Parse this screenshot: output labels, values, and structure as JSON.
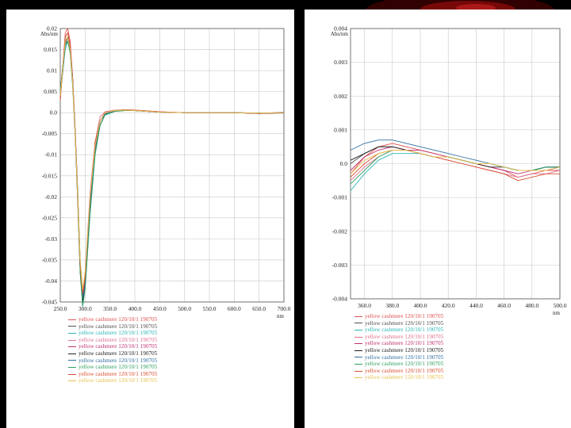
{
  "chart_data": [
    {
      "type": "line",
      "ylabel": "Abs/nm",
      "xlabel": "nm",
      "xlim": [
        250,
        700
      ],
      "ylim": [
        -0.045,
        0.02
      ],
      "x_ticks": [
        "250.0",
        "300.0",
        "350.0",
        "400.0",
        "450.0",
        "500.0",
        "550.0",
        "600.0",
        "650.0",
        "700.0"
      ],
      "y_ticks": [
        "0.02",
        "0.015",
        "0.01",
        "0.005",
        "0.0",
        "-0.005",
        "-0.01",
        "-0.015",
        "-0.02",
        "-0.025",
        "-0.03",
        "-0.035",
        "-0.04",
        "-0.045"
      ],
      "y_tick_values": [
        0.02,
        0.015,
        0.01,
        0.005,
        0.0,
        -0.005,
        -0.01,
        -0.015,
        -0.02,
        -0.025,
        -0.03,
        -0.035,
        -0.04,
        -0.045
      ],
      "grid": true,
      "series": [
        {
          "name": "yellow cashmere 120/10/1 190705",
          "color": "#e05050",
          "x": [
            250,
            260,
            265,
            270,
            275,
            280,
            285,
            290,
            295,
            300,
            310,
            320,
            330,
            340,
            360,
            380,
            400,
            450,
            500,
            550,
            600,
            650,
            700
          ],
          "y": [
            0.003,
            0.019,
            0.02,
            0.017,
            0.008,
            -0.005,
            -0.02,
            -0.037,
            -0.044,
            -0.039,
            -0.02,
            -0.008,
            -0.002,
            0.0,
            0.0005,
            0.0007,
            0.0006,
            0.0002,
            0.0,
            0.0,
            0.0,
            -0.0002,
            0.0
          ]
        },
        {
          "name": "yellow cashmere 120/10/1 190705",
          "color": "#505050",
          "x": [
            250,
            260,
            265,
            270,
            275,
            280,
            285,
            290,
            295,
            300,
            310,
            320,
            330,
            340,
            360,
            380,
            400,
            450,
            500,
            550,
            600,
            650,
            700
          ],
          "y": [
            0.004,
            0.016,
            0.018,
            0.016,
            0.008,
            -0.004,
            -0.018,
            -0.035,
            -0.043,
            -0.04,
            -0.022,
            -0.009,
            -0.003,
            -0.0005,
            0.0004,
            0.0006,
            0.0005,
            0.0001,
            0.0,
            0.0,
            0.0,
            -0.0002,
            -0.0001
          ]
        },
        {
          "name": "yellow cashmere 120/10/1 190705",
          "color": "#2ab5b5",
          "x": [
            250,
            260,
            265,
            270,
            275,
            280,
            285,
            290,
            295,
            300,
            310,
            320,
            330,
            340,
            360,
            380,
            400,
            450,
            500,
            550,
            600,
            650,
            700
          ],
          "y": [
            0.004,
            0.015,
            0.017,
            0.015,
            0.007,
            -0.005,
            -0.019,
            -0.037,
            -0.046,
            -0.042,
            -0.024,
            -0.01,
            -0.003,
            -0.0006,
            0.0003,
            0.0005,
            0.0005,
            0.0001,
            0.0,
            0.0,
            0.0,
            -0.0001,
            0.0
          ]
        },
        {
          "name": "yellow cashmere 120/10/1 190705",
          "color": "#e07090",
          "x": [
            250,
            260,
            265,
            270,
            275,
            280,
            285,
            290,
            295,
            300,
            310,
            320,
            330,
            340,
            360,
            380,
            400,
            450,
            500,
            550,
            600,
            650,
            700
          ],
          "y": [
            0.003,
            0.018,
            0.019,
            0.016,
            0.007,
            -0.005,
            -0.02,
            -0.036,
            -0.043,
            -0.038,
            -0.019,
            -0.007,
            -0.001,
            0.0002,
            0.0006,
            0.0007,
            0.0006,
            0.0002,
            0.0,
            0.0,
            0.0,
            -0.0002,
            0.0001
          ]
        },
        {
          "name": "yellow cashmere 120/10/1 190705",
          "color": "#c03070",
          "x": [
            250,
            260,
            265,
            270,
            275,
            280,
            285,
            290,
            295,
            300,
            310,
            320,
            330,
            340,
            360,
            380,
            400,
            450,
            500,
            550,
            600,
            650,
            700
          ],
          "y": [
            0.004,
            0.017,
            0.018,
            0.016,
            0.008,
            -0.004,
            -0.019,
            -0.036,
            -0.044,
            -0.04,
            -0.021,
            -0.008,
            -0.002,
            0.0,
            0.0005,
            0.0006,
            0.0005,
            0.0001,
            0.0,
            0.0,
            0.0,
            -0.0001,
            0.0
          ]
        },
        {
          "name": "yellow cashmere 120/10/1 190705",
          "color": "#202020",
          "x": [
            250,
            260,
            265,
            270,
            275,
            280,
            285,
            290,
            295,
            300,
            310,
            320,
            330,
            340,
            360,
            380,
            400,
            450,
            500,
            550,
            600,
            650,
            700
          ],
          "y": [
            0.005,
            0.017,
            0.018,
            0.015,
            0.007,
            -0.005,
            -0.02,
            -0.038,
            -0.045,
            -0.041,
            -0.023,
            -0.009,
            -0.003,
            -0.0004,
            0.0004,
            0.0006,
            0.0005,
            0.0001,
            0.0,
            0.0,
            0.0,
            -0.0002,
            0.0
          ]
        },
        {
          "name": "yellow cashmere 120/10/1 190705",
          "color": "#3070a0",
          "x": [
            250,
            260,
            265,
            270,
            275,
            280,
            285,
            290,
            295,
            300,
            310,
            320,
            330,
            340,
            360,
            380,
            400,
            450,
            500,
            550,
            600,
            650,
            700
          ],
          "y": [
            0.004,
            0.016,
            0.017,
            0.015,
            0.007,
            -0.005,
            -0.019,
            -0.036,
            -0.044,
            -0.041,
            -0.022,
            -0.009,
            -0.002,
            -0.0003,
            0.0004,
            0.0006,
            0.0005,
            0.0001,
            0.0,
            0.0,
            0.0,
            -0.0001,
            0.0
          ]
        },
        {
          "name": "yellow cashmere 120/10/1 190705",
          "color": "#30a060",
          "x": [
            250,
            260,
            265,
            270,
            275,
            280,
            285,
            290,
            295,
            300,
            310,
            320,
            330,
            340,
            360,
            380,
            400,
            450,
            500,
            550,
            600,
            650,
            700
          ],
          "y": [
            0.005,
            0.016,
            0.017,
            0.014,
            0.006,
            -0.006,
            -0.021,
            -0.038,
            -0.046,
            -0.042,
            -0.024,
            -0.01,
            -0.003,
            -0.0005,
            0.0003,
            0.0005,
            0.0005,
            0.0001,
            0.0,
            0.0,
            0.0,
            -0.0001,
            0.0
          ]
        },
        {
          "name": "yellow cashmere 120/10/1 190705",
          "color": "#d85030",
          "x": [
            250,
            260,
            265,
            270,
            275,
            280,
            285,
            290,
            295,
            300,
            310,
            320,
            330,
            340,
            360,
            380,
            400,
            450,
            500,
            550,
            600,
            650,
            700
          ],
          "y": [
            0.003,
            0.018,
            0.019,
            0.016,
            0.007,
            -0.005,
            -0.02,
            -0.036,
            -0.043,
            -0.039,
            -0.02,
            -0.007,
            -0.002,
            0.0001,
            0.0005,
            0.0007,
            0.0006,
            0.0002,
            0.0,
            0.0,
            0.0,
            -0.0002,
            0.0
          ]
        },
        {
          "name": "yellow cashmere 120/10/1 190705",
          "color": "#e8c050",
          "x": [
            250,
            260,
            265,
            270,
            275,
            280,
            285,
            290,
            295,
            300,
            310,
            320,
            330,
            340,
            360,
            380,
            400,
            450,
            500,
            550,
            600,
            650,
            700
          ],
          "y": [
            0.004,
            0.017,
            0.018,
            0.015,
            0.007,
            -0.005,
            -0.019,
            -0.035,
            -0.042,
            -0.038,
            -0.02,
            -0.008,
            -0.002,
            0.0,
            0.0005,
            0.0006,
            0.0005,
            0.0001,
            0.0,
            0.0,
            0.0,
            -0.0001,
            0.0
          ]
        }
      ]
    },
    {
      "type": "line",
      "ylabel": "Abs/nm",
      "xlabel": "nm",
      "xlim": [
        350,
        500
      ],
      "ylim": [
        -0.004,
        0.004
      ],
      "x_ticks": [
        "360.0",
        "380.0",
        "400.0",
        "420.0",
        "440.0",
        "460.0",
        "480.0",
        "500.0"
      ],
      "x_tick_values": [
        360,
        380,
        400,
        420,
        440,
        460,
        480,
        500
      ],
      "y_ticks": [
        "0.004",
        "0.003",
        "0.002",
        "0.001",
        "0.0",
        "-0.001",
        "-0.002",
        "-0.003",
        "-0.004"
      ],
      "y_tick_values": [
        0.004,
        0.003,
        0.002,
        0.001,
        0.0,
        -0.001,
        -0.002,
        -0.003,
        -0.004
      ],
      "grid": true,
      "series": [
        {
          "name": "yellow cashmere 120/10/1 190705",
          "color": "#e05050",
          "x": [
            350,
            360,
            370,
            380,
            390,
            400,
            410,
            420,
            430,
            440,
            450,
            460,
            470,
            480,
            490,
            500
          ],
          "y": [
            -0.0003,
            0.0002,
            0.0005,
            0.0006,
            0.0005,
            0.0004,
            0.0003,
            0.0002,
            0.0001,
            0.0,
            -0.0001,
            -0.0002,
            -0.0004,
            -0.0003,
            -0.0002,
            -0.0002
          ]
        },
        {
          "name": "yellow cashmere 120/10/1 190705",
          "color": "#505050",
          "x": [
            350,
            360,
            370,
            380,
            390,
            400,
            410,
            420,
            430,
            440,
            450,
            460,
            470,
            480,
            490,
            500
          ],
          "y": [
            0.0,
            0.0003,
            0.0005,
            0.0005,
            0.0004,
            0.0003,
            0.0002,
            0.0002,
            0.0001,
            0.0,
            0.0,
            -0.0001,
            -0.0002,
            -0.0002,
            -0.0001,
            -0.0001
          ]
        },
        {
          "name": "yellow cashmere 120/10/1 190705",
          "color": "#2ab5b5",
          "x": [
            350,
            360,
            370,
            380,
            390,
            400,
            410,
            420,
            430,
            440,
            450,
            460,
            470,
            480,
            490,
            500
          ],
          "y": [
            -0.0008,
            -0.0003,
            0.0001,
            0.0003,
            0.0003,
            0.0003,
            0.0002,
            0.0002,
            0.0001,
            0.0,
            0.0,
            -0.0001,
            -0.0002,
            -0.0002,
            -0.0001,
            -0.0001
          ]
        },
        {
          "name": "yellow cashmere 120/10/1 190705",
          "color": "#e07090",
          "x": [
            350,
            360,
            370,
            380,
            390,
            400,
            410,
            420,
            430,
            440,
            450,
            460,
            470,
            480,
            490,
            500
          ],
          "y": [
            -0.0005,
            -0.0001,
            0.0002,
            0.0004,
            0.0004,
            0.0003,
            0.0002,
            0.0001,
            0.0,
            -0.0001,
            -0.0002,
            -0.0003,
            -0.0004,
            -0.0003,
            -0.0003,
            -0.0002
          ]
        },
        {
          "name": "yellow cashmere 120/10/1 190705",
          "color": "#c03070",
          "x": [
            350,
            360,
            370,
            380,
            390,
            400,
            410,
            420,
            430,
            440,
            450,
            460,
            470,
            480,
            490,
            500
          ],
          "y": [
            -0.0002,
            0.0002,
            0.0004,
            0.0005,
            0.0004,
            0.0004,
            0.0003,
            0.0002,
            0.0001,
            0.0,
            -0.0001,
            -0.0002,
            -0.0003,
            -0.0002,
            -0.0002,
            -0.0001
          ]
        },
        {
          "name": "yellow cashmere 120/10/1 190705",
          "color": "#202020",
          "x": [
            350,
            360,
            370,
            380,
            390,
            400,
            410,
            420,
            430,
            440,
            450,
            460,
            470,
            480,
            490,
            500
          ],
          "y": [
            0.0001,
            0.0003,
            0.0005,
            0.0005,
            0.0004,
            0.0003,
            0.0002,
            0.0002,
            0.0001,
            0.0,
            -0.0001,
            -0.0001,
            -0.0002,
            -0.0002,
            -0.0001,
            -0.0001
          ]
        },
        {
          "name": "yellow cashmere 120/10/1 190705",
          "color": "#3070a0",
          "x": [
            350,
            360,
            370,
            380,
            390,
            400,
            410,
            420,
            430,
            440,
            450,
            460,
            470,
            480,
            490,
            500
          ],
          "y": [
            0.0004,
            0.0006,
            0.0007,
            0.0007,
            0.0006,
            0.0005,
            0.0004,
            0.0003,
            0.0002,
            0.0001,
            0.0,
            -0.0001,
            -0.0002,
            -0.0002,
            -0.0001,
            -0.0001
          ]
        },
        {
          "name": "yellow cashmere 120/10/1 190705",
          "color": "#30a060",
          "x": [
            350,
            360,
            370,
            380,
            390,
            400,
            410,
            420,
            430,
            440,
            450,
            460,
            470,
            480,
            490,
            500
          ],
          "y": [
            -0.0006,
            -0.0002,
            0.0002,
            0.0004,
            0.0004,
            0.0003,
            0.0002,
            0.0002,
            0.0001,
            0.0,
            0.0,
            -0.0001,
            -0.0002,
            -0.0002,
            -0.0001,
            -0.0001
          ]
        },
        {
          "name": "yellow cashmere 120/10/1 190705",
          "color": "#d85030",
          "x": [
            350,
            360,
            370,
            380,
            390,
            400,
            410,
            420,
            430,
            440,
            450,
            460,
            470,
            480,
            490,
            500
          ],
          "y": [
            -0.0004,
            0.0,
            0.0003,
            0.0004,
            0.0004,
            0.0003,
            0.0002,
            0.0001,
            0.0,
            -0.0001,
            -0.0002,
            -0.0003,
            -0.0005,
            -0.0004,
            -0.0003,
            -0.0003
          ]
        },
        {
          "name": "yellow cashmere 120/10/1 190705",
          "color": "#e8c050",
          "x": [
            350,
            360,
            370,
            380,
            390,
            400,
            410,
            420,
            430,
            440,
            450,
            460,
            470,
            480,
            490,
            500
          ],
          "y": [
            -0.0003,
            0.0001,
            0.0003,
            0.0004,
            0.0004,
            0.0003,
            0.0002,
            0.0002,
            0.0001,
            0.0,
            0.0,
            -0.0001,
            -0.0002,
            -0.0002,
            -0.0002,
            -0.0001
          ]
        }
      ]
    }
  ]
}
